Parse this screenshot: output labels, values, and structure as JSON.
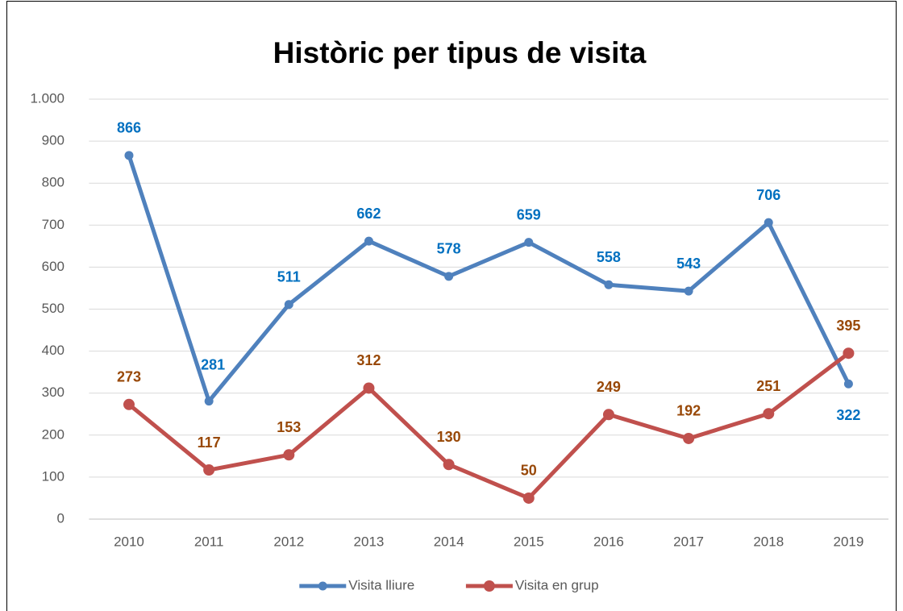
{
  "chart_data": {
    "type": "line",
    "title": "Històric per tipus de visita",
    "categories": [
      "2010",
      "2011",
      "2012",
      "2013",
      "2014",
      "2015",
      "2016",
      "2017",
      "2018",
      "2019"
    ],
    "series": [
      {
        "name": "Visita lliure",
        "color": "#4f81bd",
        "label_color": "#0070c0",
        "values": [
          866,
          281,
          511,
          662,
          578,
          659,
          558,
          543,
          706,
          322
        ]
      },
      {
        "name": "Visita en grup",
        "color": "#c0504d",
        "label_color": "#984807",
        "values": [
          273,
          117,
          153,
          312,
          130,
          50,
          249,
          192,
          251,
          395
        ]
      }
    ],
    "ylim": [
      0,
      1000
    ],
    "yticks": [
      0,
      100,
      200,
      300,
      400,
      500,
      600,
      700,
      800,
      900,
      {
        "value": 1000,
        "label": "1.000"
      }
    ],
    "grid": true,
    "legend": "bottom"
  }
}
